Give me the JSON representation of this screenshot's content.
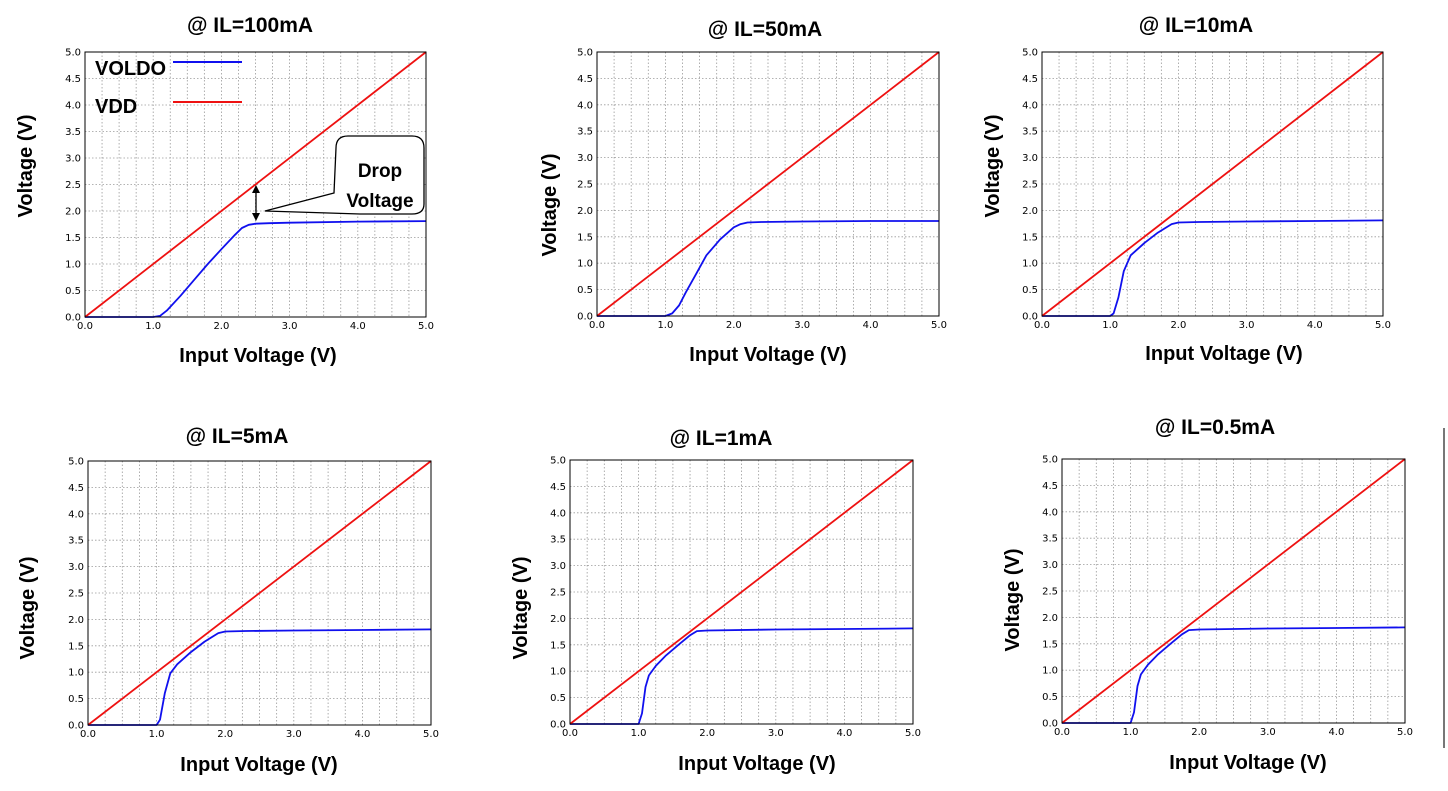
{
  "colors": {
    "voldo": "#1010ee",
    "vdd": "#ee1111"
  },
  "chart_data": [
    {
      "type": "line",
      "title": "@ IL=100mA",
      "xlabel": "Input Voltage  (V)",
      "ylabel": "Voltage (V)",
      "xlim": [
        0,
        5
      ],
      "ylim": [
        0,
        5
      ],
      "xticks": [
        "0.0",
        "1.0",
        "2.0",
        "3.0",
        "4.0",
        "5.0"
      ],
      "yticks": [
        "0.0",
        "0.5",
        "1.0",
        "1.5",
        "2.0",
        "2.5",
        "3.0",
        "3.5",
        "4.0",
        "4.5",
        "5.0"
      ],
      "grid": true,
      "legend": {
        "position": "top-left",
        "entries": [
          "VOLDO",
          "VDD"
        ]
      },
      "annotation": {
        "lines": [
          "Drop",
          "Voltage"
        ],
        "x": 2.5
      },
      "series": [
        {
          "name": "VOLDO",
          "x": [
            0,
            1.0,
            1.1,
            1.2,
            1.4,
            1.6,
            1.8,
            2.0,
            2.2,
            2.3,
            2.4,
            2.5,
            2.7,
            3.0,
            4.0,
            5.0
          ],
          "y": [
            0,
            0,
            0.02,
            0.12,
            0.4,
            0.7,
            1.0,
            1.28,
            1.55,
            1.68,
            1.74,
            1.76,
            1.77,
            1.78,
            1.8,
            1.81
          ]
        },
        {
          "name": "VDD",
          "x": [
            0,
            5
          ],
          "y": [
            0,
            5
          ]
        }
      ]
    },
    {
      "type": "line",
      "title": "@ IL=50mA",
      "xlabel": "Input Voltage  (V)",
      "ylabel": "Voltage (V)",
      "xlim": [
        0,
        5
      ],
      "ylim": [
        0,
        5
      ],
      "xticks": [
        "0.0",
        "1.0",
        "2.0",
        "3.0",
        "4.0",
        "5.0"
      ],
      "yticks": [
        "0.0",
        "0.5",
        "1.0",
        "1.5",
        "2.0",
        "2.5",
        "3.0",
        "3.5",
        "4.0",
        "4.5",
        "5.0"
      ],
      "grid": true,
      "series": [
        {
          "name": "VOLDO",
          "x": [
            0,
            1.0,
            1.1,
            1.2,
            1.3,
            1.45,
            1.6,
            1.8,
            2.0,
            2.1,
            2.2,
            2.4,
            3.0,
            4.0,
            5.0
          ],
          "y": [
            0,
            0,
            0.05,
            0.2,
            0.45,
            0.8,
            1.15,
            1.45,
            1.68,
            1.74,
            1.77,
            1.78,
            1.79,
            1.8,
            1.8
          ]
        },
        {
          "name": "VDD",
          "x": [
            0,
            5
          ],
          "y": [
            0,
            5
          ]
        }
      ]
    },
    {
      "type": "line",
      "title": "@ IL=10mA",
      "xlabel": "Input Voltage  (V)",
      "ylabel": "Voltage (V)",
      "xlim": [
        0,
        5
      ],
      "ylim": [
        0,
        5
      ],
      "xticks": [
        "0.0",
        "1.0",
        "2.0",
        "3.0",
        "4.0",
        "5.0"
      ],
      "yticks": [
        "0.0",
        "0.5",
        "1.0",
        "1.5",
        "2.0",
        "2.5",
        "3.0",
        "3.5",
        "4.0",
        "4.5",
        "5.0"
      ],
      "grid": true,
      "series": [
        {
          "name": "VOLDO",
          "x": [
            0,
            1.0,
            1.05,
            1.12,
            1.2,
            1.3,
            1.5,
            1.7,
            1.9,
            2.0,
            2.3,
            3.0,
            4.0,
            5.0
          ],
          "y": [
            0,
            0,
            0.05,
            0.35,
            0.85,
            1.15,
            1.38,
            1.58,
            1.74,
            1.77,
            1.78,
            1.79,
            1.8,
            1.81
          ]
        },
        {
          "name": "VDD",
          "x": [
            0,
            5
          ],
          "y": [
            0,
            5
          ]
        }
      ]
    },
    {
      "type": "line",
      "title": "@ IL=5mA",
      "xlabel": "Input Voltage  (V)",
      "ylabel": "Voltage (V)",
      "xlim": [
        0,
        5
      ],
      "ylim": [
        0,
        5
      ],
      "xticks": [
        "0.0",
        "1.0",
        "2.0",
        "3.0",
        "4.0",
        "5.0"
      ],
      "yticks": [
        "0.0",
        "0.5",
        "1.0",
        "1.5",
        "2.0",
        "2.5",
        "3.0",
        "3.5",
        "4.0",
        "4.5",
        "5.0"
      ],
      "grid": true,
      "series": [
        {
          "name": "VOLDO",
          "x": [
            0,
            1.0,
            1.05,
            1.12,
            1.2,
            1.3,
            1.5,
            1.7,
            1.9,
            2.0,
            2.3,
            3.0,
            4.0,
            5.0
          ],
          "y": [
            0,
            0,
            0.1,
            0.6,
            0.98,
            1.15,
            1.38,
            1.58,
            1.74,
            1.77,
            1.78,
            1.79,
            1.8,
            1.81
          ]
        },
        {
          "name": "VDD",
          "x": [
            0,
            5
          ],
          "y": [
            0,
            5
          ]
        }
      ]
    },
    {
      "type": "line",
      "title": "@ IL=1mA",
      "xlabel": "Input Voltage  (V)",
      "ylabel": "Voltage (V)",
      "xlim": [
        0,
        5
      ],
      "ylim": [
        0,
        5
      ],
      "xticks": [
        "0.0",
        "1.0",
        "2.0",
        "3.0",
        "4.0",
        "5.0"
      ],
      "yticks": [
        "0.0",
        "0.5",
        "1.0",
        "1.5",
        "2.0",
        "2.5",
        "3.0",
        "3.5",
        "4.0",
        "4.5",
        "5.0"
      ],
      "grid": true,
      "series": [
        {
          "name": "VOLDO",
          "x": [
            0,
            1.0,
            1.05,
            1.1,
            1.15,
            1.25,
            1.4,
            1.6,
            1.75,
            1.85,
            2.0,
            3.0,
            4.0,
            5.0
          ],
          "y": [
            0,
            0,
            0.2,
            0.7,
            0.92,
            1.1,
            1.3,
            1.52,
            1.68,
            1.76,
            1.77,
            1.79,
            1.8,
            1.81
          ]
        },
        {
          "name": "VDD",
          "x": [
            0,
            5
          ],
          "y": [
            0,
            5
          ]
        }
      ]
    },
    {
      "type": "line",
      "title": "@ IL=0.5mA",
      "xlabel": "Input Voltage  (V)",
      "ylabel": "Voltage (V)",
      "xlim": [
        0,
        5
      ],
      "ylim": [
        0,
        5
      ],
      "xticks": [
        "0.0",
        "1.0",
        "2.0",
        "3.0",
        "4.0",
        "5.0"
      ],
      "yticks": [
        "0.0",
        "0.5",
        "1.0",
        "1.5",
        "2.0",
        "2.5",
        "3.0",
        "3.5",
        "4.0",
        "4.5",
        "5.0"
      ],
      "grid": true,
      "series": [
        {
          "name": "VOLDO",
          "x": [
            0,
            1.0,
            1.05,
            1.1,
            1.15,
            1.25,
            1.4,
            1.6,
            1.75,
            1.85,
            2.0,
            3.0,
            4.0,
            5.0
          ],
          "y": [
            0,
            0,
            0.2,
            0.7,
            0.92,
            1.1,
            1.3,
            1.52,
            1.68,
            1.76,
            1.77,
            1.79,
            1.8,
            1.81
          ]
        },
        {
          "name": "VDD",
          "x": [
            0,
            5
          ],
          "y": [
            0,
            5
          ]
        }
      ]
    }
  ]
}
